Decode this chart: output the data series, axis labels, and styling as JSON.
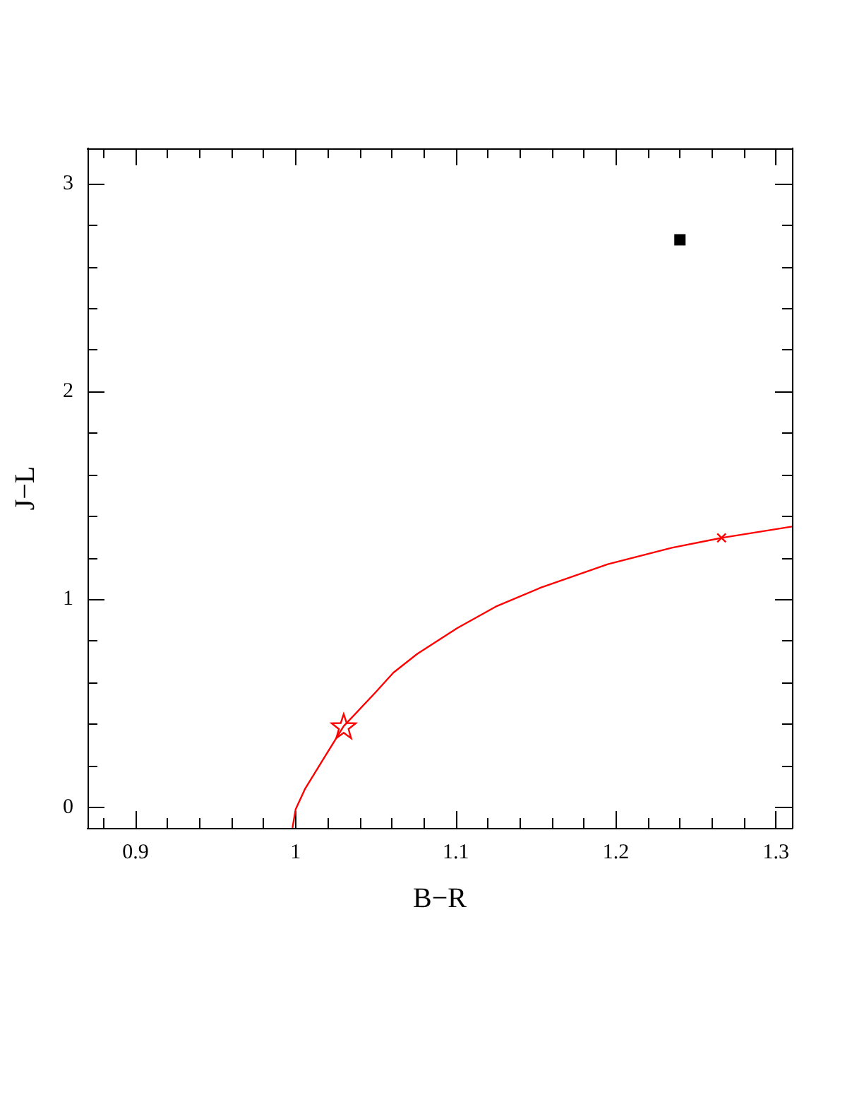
{
  "chart_data": {
    "type": "line",
    "xlabel": "B−R",
    "ylabel": "J−L",
    "xlim": [
      0.87,
      1.31
    ],
    "ylim": [
      -0.1,
      3.17
    ],
    "grid": false,
    "xticks": [
      {
        "value": 0.88,
        "label": null
      },
      0.9,
      {
        "value": 0.92,
        "label": null
      },
      {
        "value": 0.94,
        "label": null
      },
      {
        "value": 0.96,
        "label": null
      },
      {
        "value": 0.98,
        "label": null
      },
      1,
      {
        "value": 1.02,
        "label": null
      },
      {
        "value": 1.04,
        "label": null
      },
      {
        "value": 1.06,
        "label": null
      },
      {
        "value": 1.08,
        "label": null
      },
      1.1,
      {
        "value": 1.12,
        "label": null
      },
      {
        "value": 1.14,
        "label": null
      },
      {
        "value": 1.16,
        "label": null
      },
      {
        "value": 1.18,
        "label": null
      },
      1.2,
      {
        "value": 1.22,
        "label": null
      },
      {
        "value": 1.24,
        "label": null
      },
      {
        "value": 1.26,
        "label": null
      },
      {
        "value": 1.28,
        "label": null
      },
      1.3
    ],
    "yticks": [
      0,
      {
        "value": 0.2,
        "label": null
      },
      {
        "value": 0.4,
        "label": null
      },
      {
        "value": 0.6,
        "label": null
      },
      {
        "value": 0.8,
        "label": null
      },
      1,
      {
        "value": 1.2,
        "label": null
      },
      {
        "value": 1.4,
        "label": null
      },
      {
        "value": 1.6,
        "label": null
      },
      {
        "value": 1.8,
        "label": null
      },
      2,
      {
        "value": 2.2,
        "label": null
      },
      {
        "value": 2.4,
        "label": null
      },
      {
        "value": 2.6,
        "label": null
      },
      {
        "value": 2.8,
        "label": null
      },
      3
    ],
    "series": [
      {
        "color": "#ff0000",
        "marker": "none",
        "x": [
          0.998,
          1.0,
          1.006,
          1.018,
          1.03,
          1.049,
          1.061,
          1.076,
          1.101,
          1.125,
          1.153,
          1.195,
          1.235,
          1.266,
          1.31
        ],
        "values": [
          -0.1,
          -0.01,
          0.09,
          0.24,
          0.39,
          0.545,
          0.647,
          0.738,
          0.862,
          0.965,
          1.056,
          1.169,
          1.248,
          1.296,
          1.35
        ]
      },
      {
        "type": "scatter",
        "color": "#ff0000",
        "marker": "star",
        "x": [
          1.03
        ],
        "values": [
          0.39
        ]
      },
      {
        "type": "scatter",
        "color": "#ff0000",
        "marker": "cross",
        "x": [
          1.266
        ],
        "values": [
          1.296
        ]
      },
      {
        "type": "scatter",
        "color": "#000000",
        "marker": "square",
        "x": [
          1.24
        ],
        "values": [
          2.73
        ]
      }
    ]
  }
}
